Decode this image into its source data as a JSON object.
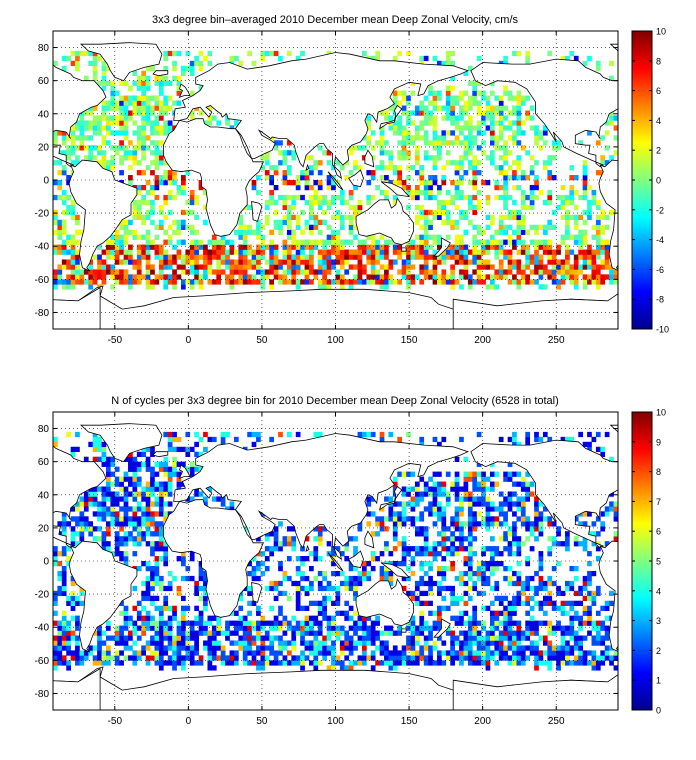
{
  "chart_data": [
    {
      "type": "heatmap",
      "title": "3x3 degree bin–averaged 2010 December mean Deep Zonal Velocity, cm/s",
      "xlabel": "",
      "ylabel": "",
      "xlim": [
        -92,
        292
      ],
      "ylim": [
        -90,
        90
      ],
      "x_ticks": [
        -50,
        0,
        50,
        100,
        150,
        200,
        250
      ],
      "y_ticks": [
        -80,
        -60,
        -40,
        -20,
        0,
        20,
        40,
        60,
        80
      ],
      "grid": "dotted",
      "bin_size_deg": 3,
      "colorbar": {
        "min": -10,
        "max": 10,
        "ticks": [
          -10,
          -8,
          -6,
          -4,
          -2,
          0,
          2,
          4,
          6,
          8,
          10
        ],
        "colormap": "jet",
        "placement": "right"
      },
      "background": "world coastline map"
    },
    {
      "type": "heatmap",
      "title": "N of cycles per 3x3 degree bin for 2010 December mean Deep Zonal Velocity (6528 in total)",
      "xlabel": "",
      "ylabel": "",
      "xlim": [
        -92,
        292
      ],
      "ylim": [
        -90,
        90
      ],
      "x_ticks": [
        -50,
        0,
        50,
        100,
        150,
        200,
        250
      ],
      "y_ticks": [
        -80,
        -60,
        -40,
        -20,
        0,
        20,
        40,
        60,
        80
      ],
      "grid": "dotted",
      "bin_size_deg": 3,
      "total_cycles": 6528,
      "colorbar": {
        "min": 0,
        "max": 10,
        "ticks": [
          0,
          1,
          2,
          3,
          4,
          5,
          6,
          7,
          8,
          9,
          10
        ],
        "colormap": "jet",
        "placement": "right"
      },
      "background": "world coastline map"
    }
  ]
}
